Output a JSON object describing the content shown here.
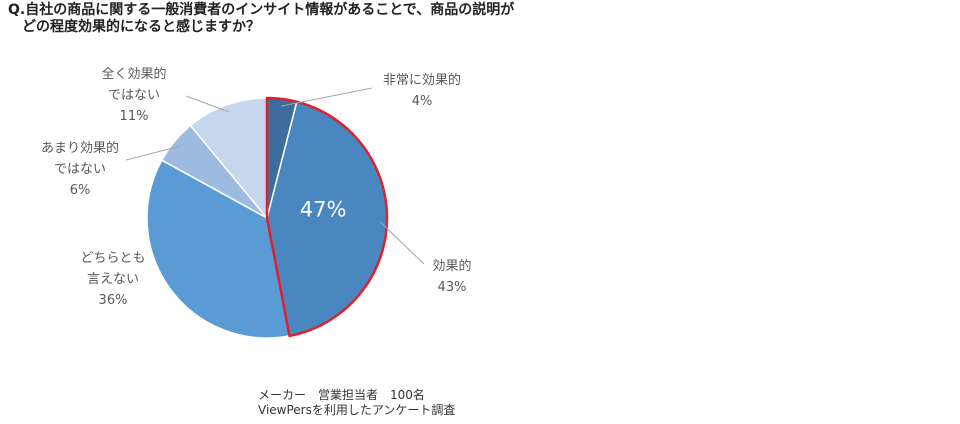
{
  "chart_data": {
    "type": "pie",
    "title": [
      "Q.自社の商品に関する一般消費者のインサイト情報があることで、商品の説明が",
      "どの程度効果的になると感じますか？"
    ],
    "categories": [
      "非常に効果的",
      "効果的",
      "どちらとも言えない",
      "あまり効果的ではない",
      "全く効果的ではない"
    ],
    "values": [
      4,
      43,
      36,
      6,
      11
    ],
    "value_labels": [
      "4%",
      "43%",
      "36%",
      "6%",
      "11%"
    ],
    "colors": [
      "#3e6c9c",
      "#4a86bf",
      "#5b9bd5",
      "#9dbbe1",
      "#c6d6ed"
    ],
    "highlight_label": "47%",
    "highlight_color": "#e0202a",
    "notes": [
      "メーカー　営業担当者　100名",
      "ViewPersを利用したアンケート調査"
    ]
  }
}
